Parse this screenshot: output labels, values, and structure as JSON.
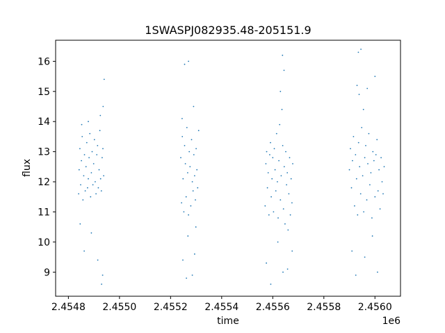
{
  "chart_data": {
    "type": "scatter",
    "title": "1SWASPJ082935.48-205151.9",
    "xlabel": "time",
    "ylabel": "flux",
    "x_offset_label": "1e6",
    "xlim": [
      2454750,
      2456100
    ],
    "ylim": [
      8.2,
      16.7
    ],
    "x_ticks": [
      2454800,
      2455000,
      2455200,
      2455400,
      2455600,
      2455800,
      2456000
    ],
    "x_tick_labels": [
      "2.4548",
      "2.4550",
      "2.4552",
      "2.4554",
      "2.4556",
      "2.4558",
      "2.4560"
    ],
    "y_ticks": [
      9,
      10,
      11,
      12,
      13,
      14,
      15,
      16
    ],
    "y_tick_labels": [
      "9",
      "10",
      "11",
      "12",
      "13",
      "14",
      "15",
      "16"
    ],
    "grid": false,
    "marker_color": "#1f77b4",
    "series": [
      {
        "clusters": [
          {
            "x_range": [
              2454840,
              2454940
            ],
            "points": [
              [
                2454840,
                11.6
              ],
              [
                2454842,
                12.4
              ],
              [
                2454845,
                13.1
              ],
              [
                2454848,
                11.9
              ],
              [
                2454851,
                12.7
              ],
              [
                2454854,
                13.5
              ],
              [
                2454857,
                11.4
              ],
              [
                2454860,
                12.2
              ],
              [
                2454863,
                12.9
              ],
              [
                2454866,
                11.7
              ],
              [
                2454869,
                12.5
              ],
              [
                2454872,
                13.3
              ],
              [
                2454875,
                11.8
              ],
              [
                2454878,
                12.1
              ],
              [
                2454881,
                12.8
              ],
              [
                2454884,
                13.6
              ],
              [
                2454887,
                11.5
              ],
              [
                2454890,
                12.3
              ],
              [
                2454893,
                13.0
              ],
              [
                2454896,
                11.9
              ],
              [
                2454899,
                12.6
              ],
              [
                2454902,
                13.4
              ],
              [
                2454905,
                12.0
              ],
              [
                2454908,
                11.6
              ],
              [
                2454911,
                12.9
              ],
              [
                2454914,
                13.2
              ],
              [
                2454917,
                11.8
              ],
              [
                2454920,
                12.4
              ],
              [
                2454923,
                13.7
              ],
              [
                2454926,
                12.1
              ],
              [
                2454929,
                11.7
              ],
              [
                2454932,
                12.8
              ],
              [
                2454935,
                13.1
              ],
              [
                2454938,
                12.2
              ],
              [
                2454846,
                10.6
              ],
              [
                2454862,
                9.7
              ],
              [
                2454890,
                10.3
              ],
              [
                2454915,
                9.4
              ],
              [
                2454930,
                8.6
              ],
              [
                2454936,
                14.5
              ],
              [
                2454925,
                14.2
              ],
              [
                2454852,
                13.9
              ],
              [
                2454878,
                14.0
              ],
              [
                2454934,
                8.9
              ],
              [
                2454940,
                15.4
              ]
            ]
          },
          {
            "x_range": [
              2455240,
              2455310
            ],
            "points": [
              [
                2455240,
                12.8
              ],
              [
                2455243,
                11.3
              ],
              [
                2455246,
                13.5
              ],
              [
                2455249,
                12.1
              ],
              [
                2455252,
                11.0
              ],
              [
                2455255,
                13.2
              ],
              [
                2455258,
                12.6
              ],
              [
                2455261,
                11.5
              ],
              [
                2455264,
                13.8
              ],
              [
                2455267,
                12.3
              ],
              [
                2455270,
                10.9
              ],
              [
                2455273,
                13.0
              ],
              [
                2455276,
                12.5
              ],
              [
                2455279,
                11.2
              ],
              [
                2455282,
                13.4
              ],
              [
                2455285,
                12.0
              ],
              [
                2455288,
                11.7
              ],
              [
                2455291,
                12.9
              ],
              [
                2455294,
                12.2
              ],
              [
                2455297,
                11.4
              ],
              [
                2455300,
                13.1
              ],
              [
                2455303,
                12.4
              ],
              [
                2455306,
                11.8
              ],
              [
                2455248,
                9.4
              ],
              [
                2455262,
                8.8
              ],
              [
                2455285,
                8.9
              ],
              [
                2455268,
                10.2
              ],
              [
                2455294,
                9.6
              ],
              [
                2455255,
                15.9
              ],
              [
                2455270,
                16.0
              ],
              [
                2455290,
                14.5
              ],
              [
                2455310,
                13.7
              ],
              [
                2455245,
                14.1
              ],
              [
                2455299,
                10.5
              ]
            ]
          },
          {
            "x_range": [
              2455570,
              2455680
            ],
            "points": [
              [
                2455570,
                11.2
              ],
              [
                2455573,
                12.6
              ],
              [
                2455576,
                13.0
              ],
              [
                2455579,
                11.8
              ],
              [
                2455582,
                12.3
              ],
              [
                2455585,
                10.9
              ],
              [
                2455588,
                12.9
              ],
              [
                2455591,
                13.3
              ],
              [
                2455594,
                11.5
              ],
              [
                2455597,
                12.1
              ],
              [
                2455600,
                12.8
              ],
              [
                2455603,
                11.0
              ],
              [
                2455606,
                13.1
              ],
              [
                2455609,
                12.4
              ],
              [
                2455612,
                11.7
              ],
              [
                2455615,
                13.6
              ],
              [
                2455618,
                12.0
              ],
              [
                2455621,
                10.8
              ],
              [
                2455624,
                12.7
              ],
              [
                2455627,
                13.9
              ],
              [
                2455630,
                11.4
              ],
              [
                2455633,
                12.2
              ],
              [
                2455636,
                14.4
              ],
              [
                2455639,
                13.2
              ],
              [
                2455642,
                11.1
              ],
              [
                2455645,
                12.5
              ],
              [
                2455648,
                10.6
              ],
              [
                2455651,
                13.0
              ],
              [
                2455654,
                11.9
              ],
              [
                2455657,
                12.3
              ],
              [
                2455660,
                10.4
              ],
              [
                2455663,
                11.6
              ],
              [
                2455666,
                12.8
              ],
              [
                2455669,
                10.9
              ],
              [
                2455672,
                12.1
              ],
              [
                2455675,
                11.3
              ],
              [
                2455678,
                12.6
              ],
              [
                2455575,
                9.3
              ],
              [
                2455592,
                8.6
              ],
              [
                2455640,
                9.0
              ],
              [
                2455658,
                9.1
              ],
              [
                2455620,
                10.0
              ],
              [
                2455638,
                16.2
              ],
              [
                2455644,
                15.7
              ],
              [
                2455630,
                15.0
              ],
              [
                2455676,
                9.7
              ]
            ]
          },
          {
            "x_range": [
              2455900,
              2456040
            ],
            "points": [
              [
                2455900,
                12.4
              ],
              [
                2455904,
                13.1
              ],
              [
                2455908,
                11.8
              ],
              [
                2455912,
                12.7
              ],
              [
                2455916,
                13.5
              ],
              [
                2455920,
                11.2
              ],
              [
                2455924,
                12.9
              ],
              [
                2455928,
                12.1
              ],
              [
                2455932,
                10.9
              ],
              [
                2455936,
                13.3
              ],
              [
                2455940,
                12.5
              ],
              [
                2455944,
                11.6
              ],
              [
                2455948,
                13.8
              ],
              [
                2455952,
                12.2
              ],
              [
                2455956,
                11.0
              ],
              [
                2455960,
                12.8
              ],
              [
                2455964,
                13.2
              ],
              [
                2455968,
                11.4
              ],
              [
                2455972,
                12.6
              ],
              [
                2455976,
                13.6
              ],
              [
                2455980,
                11.9
              ],
              [
                2455984,
                12.3
              ],
              [
                2455988,
                10.8
              ],
              [
                2455992,
                13.0
              ],
              [
                2455996,
                12.7
              ],
              [
                2456000,
                11.5
              ],
              [
                2456004,
                12.9
              ],
              [
                2456008,
                13.4
              ],
              [
                2456012,
                11.7
              ],
              [
                2456016,
                12.4
              ],
              [
                2456020,
                11.1
              ],
              [
                2456024,
                12.8
              ],
              [
                2456028,
                12.0
              ],
              [
                2456032,
                11.6
              ],
              [
                2456036,
                12.5
              ],
              [
                2455935,
                16.3
              ],
              [
                2455930,
                15.2
              ],
              [
                2455945,
                16.4
              ],
              [
                2455938,
                14.9
              ],
              [
                2455910,
                9.7
              ],
              [
                2455925,
                8.9
              ],
              [
                2455960,
                9.5
              ],
              [
                2455990,
                10.2
              ],
              [
                2456010,
                9.0
              ],
              [
                2455970,
                15.1
              ],
              [
                2456000,
                15.5
              ],
              [
                2455955,
                14.4
              ]
            ]
          }
        ]
      }
    ]
  }
}
